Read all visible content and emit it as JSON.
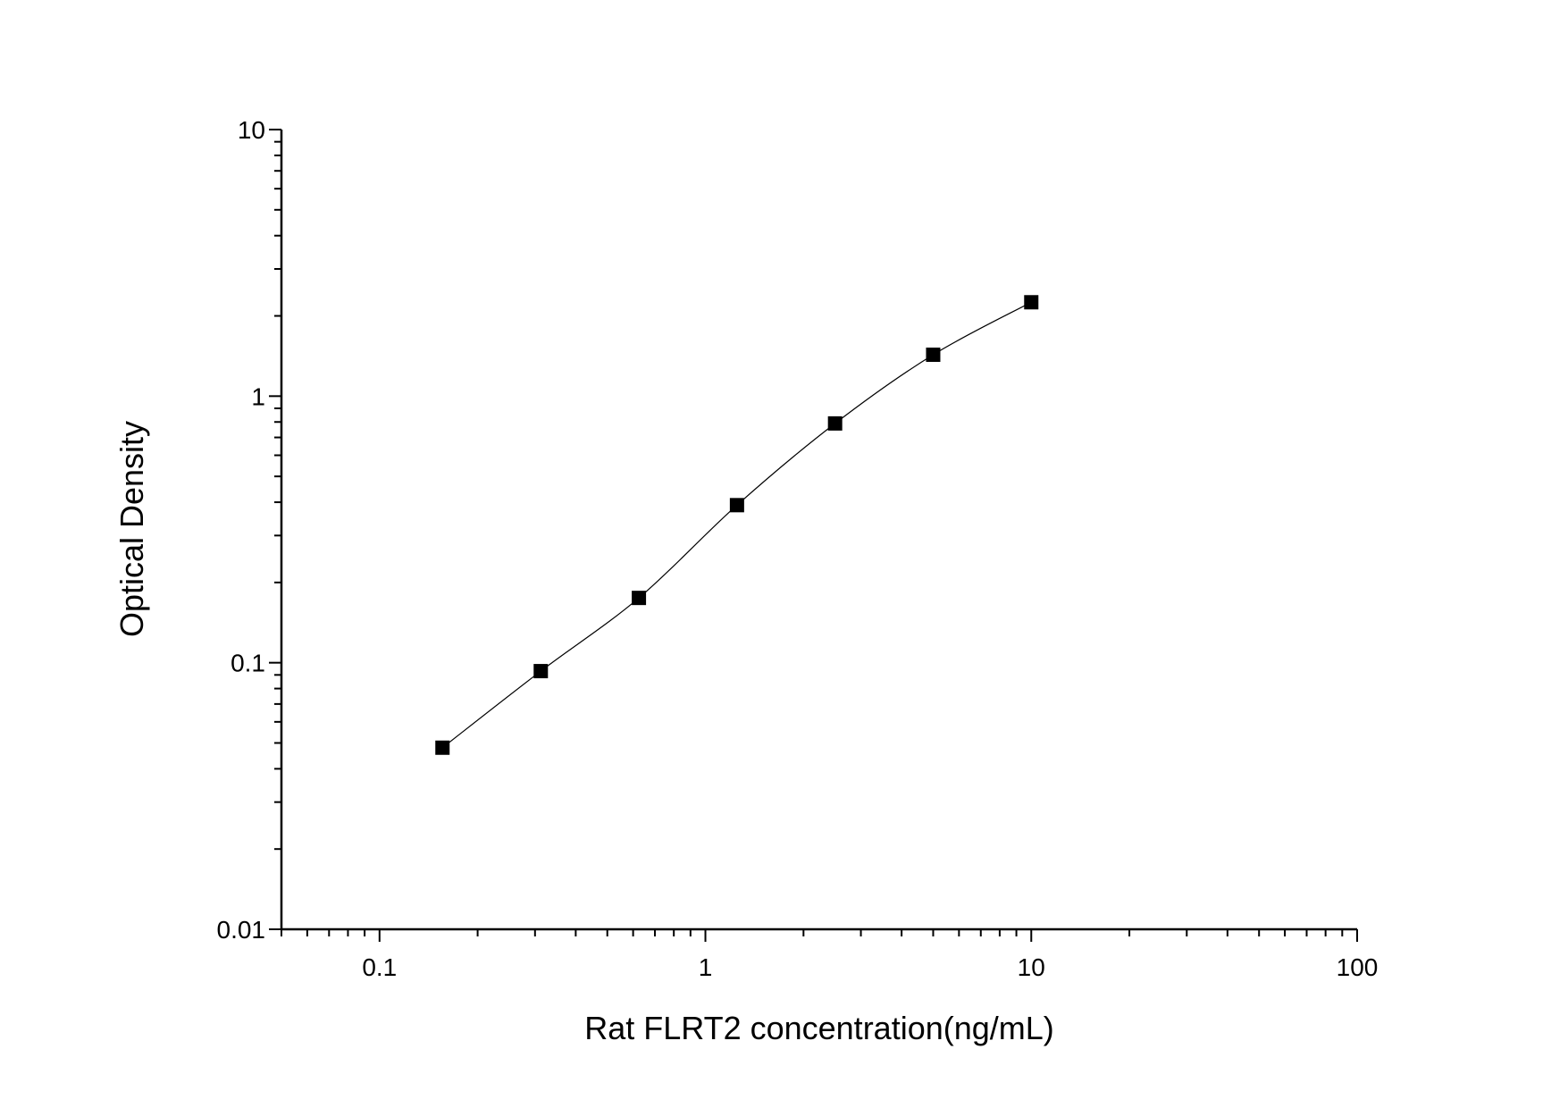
{
  "chart_data": {
    "type": "scatter",
    "title": "",
    "xlabel": "Rat FLRT2 concentration(ng/mL)",
    "ylabel": "Optical Density",
    "xscale": "log",
    "yscale": "log",
    "xlim": [
      0.05,
      100
    ],
    "ylim": [
      0.01,
      10
    ],
    "xticks": [
      0.1,
      1,
      10,
      100
    ],
    "xtick_labels": [
      "0.1",
      "1",
      "10",
      "100"
    ],
    "yticks": [
      0.01,
      0.1,
      1,
      10
    ],
    "ytick_labels": [
      "0.01",
      "0.1",
      "1",
      "10"
    ],
    "grid": false,
    "marker": "square",
    "fit_curve": true,
    "colors": {
      "marker": "#000000",
      "line": "#000000"
    },
    "series": [
      {
        "x": [
          0.156,
          0.3125,
          0.625,
          1.25,
          2.5,
          5,
          10
        ],
        "y": [
          0.048,
          0.093,
          0.175,
          0.39,
          0.79,
          1.43,
          2.25
        ]
      }
    ]
  }
}
